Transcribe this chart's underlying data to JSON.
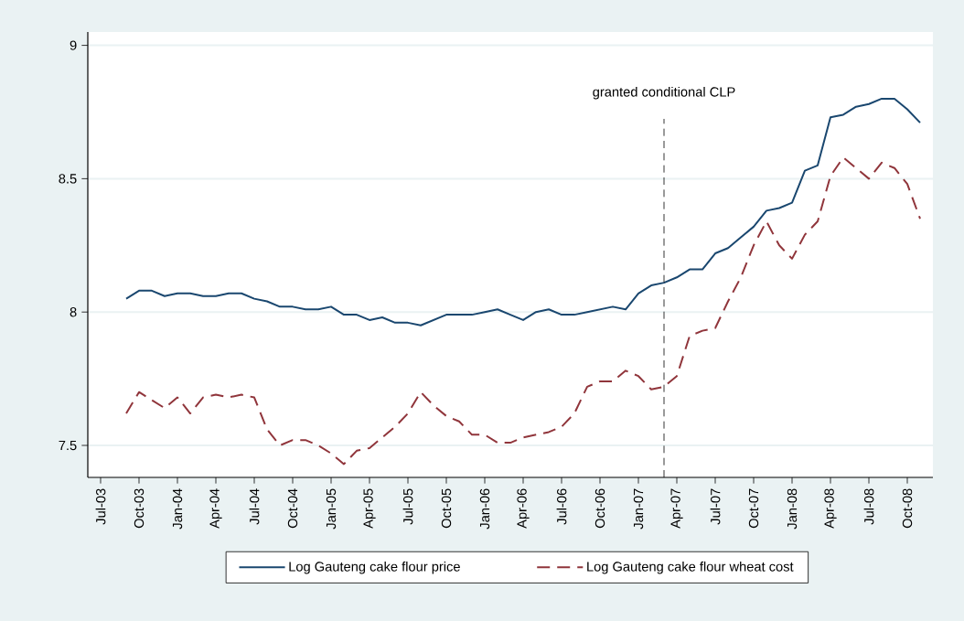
{
  "chart_data": {
    "type": "line",
    "x": [
      "2003-09",
      "2003-10",
      "2003-11",
      "2003-12",
      "2004-01",
      "2004-02",
      "2004-03",
      "2004-04",
      "2004-05",
      "2004-06",
      "2004-07",
      "2004-08",
      "2004-09",
      "2004-10",
      "2004-11",
      "2004-12",
      "2005-01",
      "2005-02",
      "2005-03",
      "2005-04",
      "2005-05",
      "2005-06",
      "2005-07",
      "2005-08",
      "2005-09",
      "2005-10",
      "2005-11",
      "2005-12",
      "2006-01",
      "2006-02",
      "2006-03",
      "2006-04",
      "2006-05",
      "2006-06",
      "2006-07",
      "2006-08",
      "2006-09",
      "2006-10",
      "2006-11",
      "2006-12",
      "2007-01",
      "2007-02",
      "2007-03",
      "2007-04",
      "2007-05",
      "2007-06",
      "2007-07",
      "2007-08",
      "2007-09",
      "2007-10",
      "2007-11",
      "2007-12",
      "2008-01",
      "2008-02",
      "2008-03",
      "2008-04",
      "2008-05",
      "2008-06",
      "2008-07",
      "2008-08",
      "2008-09",
      "2008-10",
      "2008-11"
    ],
    "series": [
      {
        "name": "Log Gauteng cake flour price",
        "color": "#1a476f",
        "line_style": "solid",
        "values": [
          8.05,
          8.08,
          8.08,
          8.06,
          8.07,
          8.07,
          8.06,
          8.06,
          8.07,
          8.07,
          8.05,
          8.04,
          8.02,
          8.02,
          8.01,
          8.01,
          8.02,
          7.99,
          7.99,
          7.97,
          7.98,
          7.96,
          7.96,
          7.95,
          7.97,
          7.99,
          7.99,
          7.99,
          8.0,
          8.01,
          7.99,
          7.97,
          8.0,
          8.01,
          7.99,
          7.99,
          8.0,
          8.01,
          8.02,
          8.01,
          8.07,
          8.1,
          8.11,
          8.13,
          8.16,
          8.16,
          8.22,
          8.24,
          8.28,
          8.32,
          8.38,
          8.39,
          8.41,
          8.53,
          8.55,
          8.73,
          8.74,
          8.77,
          8.78,
          8.8,
          8.8,
          8.76,
          8.71
        ]
      },
      {
        "name": "Log Gauteng cake flour wheat cost",
        "color": "#90353b",
        "line_style": "dashed",
        "values": [
          7.62,
          7.7,
          7.67,
          7.64,
          7.68,
          7.62,
          7.68,
          7.69,
          7.68,
          7.69,
          7.68,
          7.56,
          7.5,
          7.52,
          7.52,
          7.5,
          7.47,
          7.43,
          7.48,
          7.49,
          7.53,
          7.57,
          7.62,
          7.7,
          7.65,
          7.61,
          7.59,
          7.54,
          7.54,
          7.51,
          7.51,
          7.53,
          7.54,
          7.55,
          7.57,
          7.62,
          7.72,
          7.74,
          7.74,
          7.78,
          7.76,
          7.71,
          7.72,
          7.76,
          7.91,
          7.93,
          7.94,
          8.04,
          8.13,
          8.25,
          8.34,
          8.25,
          8.2,
          8.29,
          8.34,
          8.51,
          8.58,
          8.54,
          8.5,
          8.56,
          8.54,
          8.48,
          8.35
        ]
      }
    ],
    "xlim": [
      "2003-06",
      "2008-12"
    ],
    "xticks": [
      {
        "value": "2003-07",
        "label": "Jul-03"
      },
      {
        "value": "2003-10",
        "label": "Oct-03"
      },
      {
        "value": "2004-01",
        "label": "Jan-04"
      },
      {
        "value": "2004-04",
        "label": "Apr-04"
      },
      {
        "value": "2004-07",
        "label": "Jul-04"
      },
      {
        "value": "2004-10",
        "label": "Oct-04"
      },
      {
        "value": "2005-01",
        "label": "Jan-05"
      },
      {
        "value": "2005-04",
        "label": "Apr-05"
      },
      {
        "value": "2005-07",
        "label": "Jul-05"
      },
      {
        "value": "2005-10",
        "label": "Oct-05"
      },
      {
        "value": "2006-01",
        "label": "Jan-06"
      },
      {
        "value": "2006-04",
        "label": "Apr-06"
      },
      {
        "value": "2006-07",
        "label": "Jul-06"
      },
      {
        "value": "2006-10",
        "label": "Oct-06"
      },
      {
        "value": "2007-01",
        "label": "Jan-07"
      },
      {
        "value": "2007-04",
        "label": "Apr-07"
      },
      {
        "value": "2007-07",
        "label": "Jul-07"
      },
      {
        "value": "2007-10",
        "label": "Oct-07"
      },
      {
        "value": "2008-01",
        "label": "Jan-08"
      },
      {
        "value": "2008-04",
        "label": "Apr-08"
      },
      {
        "value": "2008-07",
        "label": "Jul-08"
      },
      {
        "value": "2008-10",
        "label": "Oct-08"
      }
    ],
    "ylim": [
      7.38,
      9.05
    ],
    "yticks": [
      7.5,
      8,
      8.5,
      9
    ],
    "grid": "y",
    "legend": "bottom",
    "ref_lines": [
      {
        "axis": "x",
        "value": "2007-03",
        "label": "granted conditional CLP",
        "color": "#000000",
        "line_style": "dashed"
      }
    ]
  }
}
